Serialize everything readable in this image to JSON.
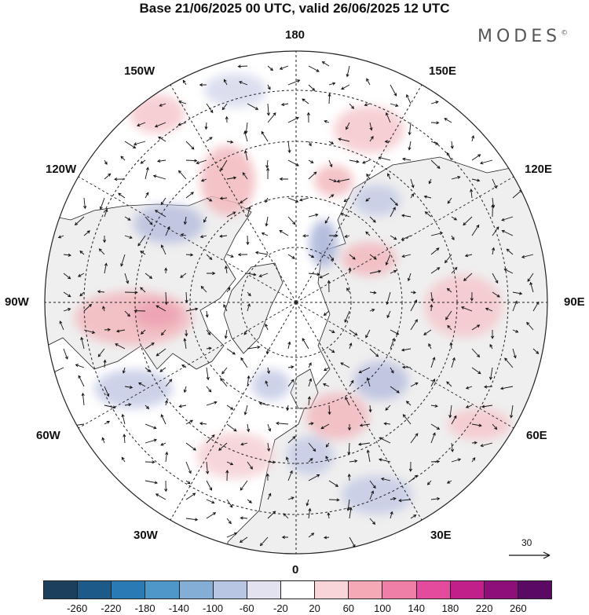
{
  "title": "Base 21/06/2025 00 UTC, valid 26/06/2025 12 UTC",
  "brand": "MODES",
  "brand_mark": "©",
  "longitude_labels": {
    "top": "180",
    "bottom": "0",
    "left": "90W",
    "right": "90E",
    "nw_upper": "150W",
    "nw_lower": "120W",
    "ne_upper": "150E",
    "ne_lower": "120E",
    "sw_upper": "60W",
    "sw_lower": "30W",
    "se_upper": "60E",
    "se_lower": "30E"
  },
  "reference_vector": {
    "label": "30",
    "icon": "arrow-right-icon"
  },
  "colorbar": {
    "colors": [
      "#1b3f5c",
      "#1d5a8a",
      "#2a7bb5",
      "#4e97c9",
      "#85aed6",
      "#b8c6e3",
      "#e3e2f0",
      "#ffffff",
      "#fad5d8",
      "#f5a9b7",
      "#ef7fa6",
      "#e44b9d",
      "#c11f8a",
      "#8f0f78",
      "#5a0a62"
    ],
    "tick_labels": [
      "-260",
      "-220",
      "-180",
      "-140",
      "-100",
      "-60",
      "-20",
      "20",
      "60",
      "100",
      "140",
      "180",
      "220",
      "260"
    ]
  },
  "map": {
    "projection": "north polar stereographic",
    "center": "North Pole",
    "land_color": "#efefef",
    "ocean_color": "#ffffff",
    "positive_anomaly_color": "#f2b9bf",
    "negative_anomaly_color": "#b9bfdf"
  }
}
